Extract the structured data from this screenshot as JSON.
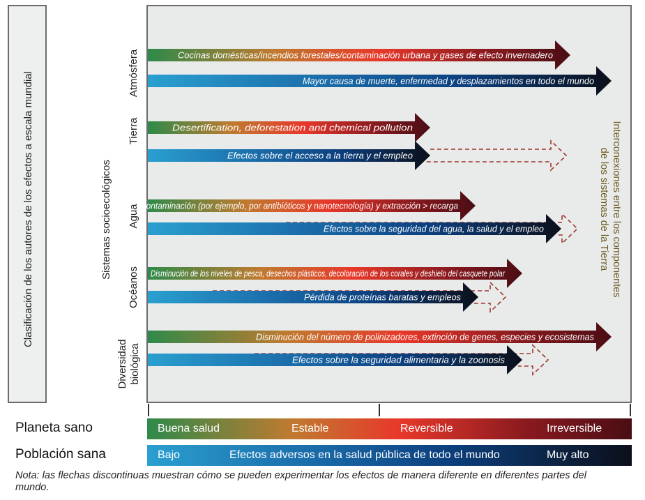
{
  "left_axis_label": "Clasificación de los autores de los efectos a escala mundial",
  "systems_label": "Sistemas socioecológicos",
  "right_label_lines": [
    "Interconexiones entre los componentes",
    "de los sistemas de la Tierra"
  ],
  "rows": [
    {
      "label": [
        "Atmósfera"
      ],
      "planet_arrow": "Cocinas domésticas/incendios forestales/contaminación urbana y gases de efecto invernadero",
      "people_arrow": "Mayor causa de muerte, enfermedad y desplazamientos en todo el mundo",
      "people_dashed": false
    },
    {
      "label": [
        "Tierra"
      ],
      "planet_arrow": "Desertification, deforestation and chemical pollution",
      "people_arrow": "Efectos sobre el acceso a la tierra y el empleo",
      "people_dashed": true
    },
    {
      "label": [
        "Agua"
      ],
      "planet_arrow": "Contaminación (por ejemplo, por antibióticos y nanotecnología) y extracción > recarga",
      "people_arrow": "Efectos sobre la seguridad del agua, la salud y el empleo",
      "people_dashed": true
    },
    {
      "label": [
        "Océanos"
      ],
      "planet_arrow": "Disminución de los niveles de pesca, desechos plásticos, decoloración de los corales y deshielo del casquete polar",
      "people_arrow": "Pérdida de proteínas baratas y empleos",
      "people_dashed": true
    },
    {
      "label": [
        "Diversidad",
        "biológica"
      ],
      "planet_arrow": "Disminución del número de polinizadores, extinción de genes, especies y ecosistemas",
      "people_arrow": "Efectos sobre la seguridad alimentaria y la zoonosis",
      "people_dashed": true
    }
  ],
  "legend": {
    "planet": {
      "label": "Planeta sano",
      "stops": [
        "Buena salud",
        "Estable",
        "Reversible",
        "Irreversible"
      ]
    },
    "people": {
      "label": "Población sana",
      "low": "Bajo",
      "middle": "Efectos adversos en la salud pública de todo el mundo",
      "high": "Muy alto"
    }
  },
  "note": "Nota: las flechas discontinuas muestran cómo se pueden experimentar los efectos de manera diferente en diferentes partes del mundo.",
  "colors": {
    "planet_gradient": [
      "#2e8a4a",
      "#c07a30",
      "#e8382a",
      "#8a1a1f",
      "#4a0d14"
    ],
    "people_gradient": [
      "#2a9fd0",
      "#1a6aa8",
      "#0c3f7e",
      "#0b0f1a"
    ],
    "dashed": "#a0352c",
    "interconnect_text": "#6b5a1e"
  }
}
